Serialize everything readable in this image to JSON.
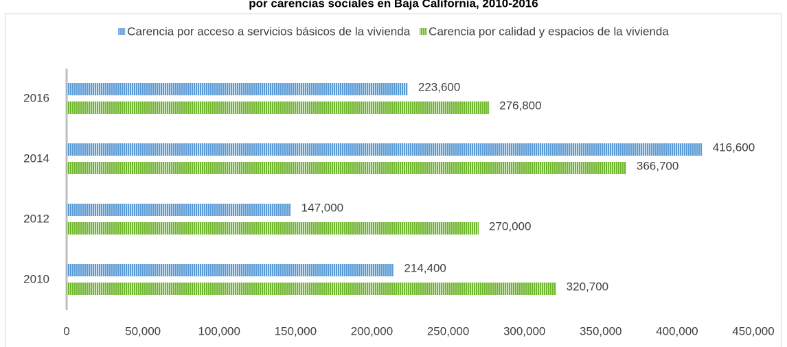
{
  "chart_data": {
    "type": "hbar",
    "title": "por carencias sociales en Baja California, 2010-2016",
    "categories": [
      "2010",
      "2012",
      "2014",
      "2016"
    ],
    "series": [
      {
        "name": "Carencia por acceso a servicios básicos de la vivienda",
        "color": "#5b9bd5",
        "values": [
          214400,
          147000,
          416600,
          223600
        ],
        "value_labels": [
          "214,400",
          "147,000",
          "416,600",
          "223,600"
        ]
      },
      {
        "name": "Carencia por calidad y espacios de la vivienda",
        "color": "#70b52f",
        "values": [
          320700,
          270000,
          366700,
          276800
        ],
        "value_labels": [
          "320,700",
          "270,000",
          "366,700",
          "276,800"
        ]
      }
    ],
    "xlim": [
      0,
      450000
    ],
    "xticks": [
      0,
      {
        "value": 50000,
        "label": "50,000"
      },
      {
        "value": 100000,
        "label": "100,000"
      },
      {
        "value": 150000,
        "label": "150,000"
      },
      {
        "value": 200000,
        "label": "200,000"
      },
      {
        "value": 250000,
        "label": "250,000"
      },
      {
        "value": 300000,
        "label": "300,000"
      },
      {
        "value": 350000,
        "label": "350,000"
      },
      {
        "value": 400000,
        "label": "400,000"
      },
      {
        "value": 450000,
        "label": "450,000"
      }
    ],
    "legend": "top"
  }
}
